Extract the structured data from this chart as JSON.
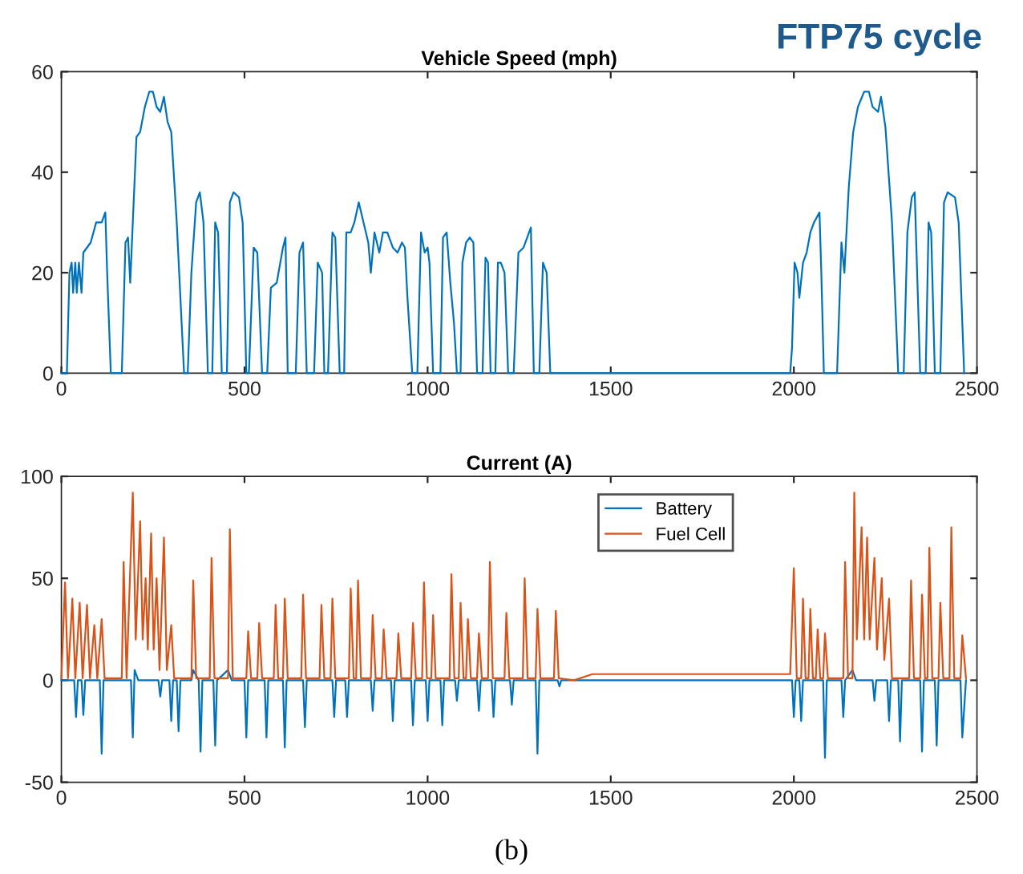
{
  "chart_data": [
    {
      "type": "line",
      "title": "Vehicle Speed (mph)",
      "annotations": [
        "FTP75 cycle"
      ],
      "xlim": [
        0,
        2500
      ],
      "xticks": [
        0,
        500,
        1000,
        1500,
        2000,
        2500
      ],
      "ylim": [
        0,
        60
      ],
      "yticks": [
        0,
        20,
        40,
        60
      ],
      "grid": false,
      "legend": false,
      "series": [
        {
          "color": "#0072bd",
          "x": [
            0,
            15,
            22,
            28,
            32,
            38,
            42,
            48,
            55,
            60,
            80,
            95,
            110,
            120,
            125,
            135,
            165,
            175,
            182,
            188,
            195,
            205,
            215,
            228,
            240,
            250,
            260,
            270,
            280,
            290,
            300,
            315,
            335,
            345,
            355,
            368,
            378,
            388,
            400,
            412,
            420,
            428,
            438,
            452,
            460,
            470,
            485,
            495,
            505,
            512,
            525,
            535,
            548,
            562,
            572,
            588,
            605,
            612,
            618,
            640,
            650,
            660,
            670,
            690,
            700,
            712,
            718,
            728,
            740,
            748,
            760,
            772,
            778,
            790,
            800,
            812,
            825,
            838,
            845,
            855,
            868,
            878,
            890,
            905,
            918,
            930,
            938,
            945,
            958,
            972,
            982,
            992,
            1000,
            1005,
            1015,
            1035,
            1042,
            1052,
            1062,
            1072,
            1080,
            1090,
            1095,
            1105,
            1115,
            1125,
            1135,
            1150,
            1158,
            1165,
            1172,
            1185,
            1192,
            1200,
            1210,
            1220,
            1235,
            1248,
            1262,
            1272,
            1282,
            1290,
            1305,
            1315,
            1325,
            1335,
            1370,
            1990,
            1995,
            2002,
            2010,
            2015,
            2025,
            2035,
            2045,
            2055,
            2070,
            2075,
            2082,
            2118,
            2130,
            2138,
            2150,
            2162,
            2175,
            2192,
            2205,
            2215,
            2230,
            2238,
            2250,
            2268,
            2285,
            2300,
            2310,
            2322,
            2330,
            2345,
            2360,
            2368,
            2375,
            2385,
            2400,
            2410,
            2420,
            2440,
            2450,
            2465
          ],
          "values": [
            0,
            0,
            20,
            22,
            16,
            22,
            16,
            22,
            16,
            24,
            26,
            30,
            30,
            32,
            20,
            0,
            0,
            26,
            27,
            18,
            30,
            47,
            48,
            53,
            56,
            56,
            53,
            52,
            55,
            50,
            48,
            30,
            0,
            0,
            20,
            34,
            36,
            30,
            0,
            0,
            30,
            28,
            0,
            0,
            34,
            36,
            35,
            30,
            0,
            0,
            25,
            24,
            0,
            0,
            17,
            18,
            25,
            27,
            0,
            0,
            24,
            26,
            0,
            0,
            22,
            20,
            0,
            0,
            28,
            27,
            0,
            0,
            28,
            28,
            30,
            34,
            30,
            26,
            20,
            28,
            24,
            28,
            28,
            25,
            24,
            26,
            25,
            15,
            0,
            0,
            28,
            24,
            25,
            22,
            0,
            0,
            27,
            28,
            18,
            10,
            0,
            0,
            22,
            26,
            27,
            26,
            0,
            0,
            23,
            22,
            0,
            0,
            22,
            22,
            20,
            0,
            0,
            24,
            25,
            27,
            29,
            0,
            0,
            22,
            20,
            0,
            0,
            0,
            5,
            22,
            20,
            15,
            22,
            24,
            28,
            30,
            32,
            20,
            0,
            0,
            26,
            20,
            37,
            48,
            53,
            56,
            56,
            53,
            52,
            55,
            49,
            30,
            0,
            0,
            28,
            35,
            36,
            0,
            0,
            30,
            28,
            0,
            0,
            34,
            36,
            35,
            30,
            0
          ]
        }
      ]
    },
    {
      "type": "line",
      "title": "Current (A)",
      "annotations": [
        "(b)"
      ],
      "xlim": [
        0,
        2500
      ],
      "xticks": [
        0,
        500,
        1000,
        1500,
        2000,
        2500
      ],
      "ylim": [
        -50,
        100
      ],
      "yticks": [
        -50,
        0,
        50,
        100
      ],
      "grid": false,
      "legend": "top",
      "series": [
        {
          "name": "Battery",
          "color": "#0072bd",
          "x": [
            0,
            35,
            40,
            45,
            55,
            60,
            65,
            105,
            110,
            115,
            190,
            195,
            200,
            210,
            265,
            270,
            275,
            295,
            300,
            305,
            315,
            320,
            325,
            355,
            360,
            375,
            380,
            385,
            415,
            420,
            425,
            455,
            465,
            500,
            505,
            510,
            555,
            560,
            565,
            605,
            610,
            615,
            660,
            665,
            670,
            740,
            745,
            750,
            775,
            780,
            785,
            845,
            850,
            855,
            900,
            905,
            910,
            955,
            960,
            965,
            995,
            1000,
            1005,
            1035,
            1040,
            1045,
            1075,
            1080,
            1085,
            1135,
            1140,
            1145,
            1175,
            1180,
            1185,
            1225,
            1230,
            1235,
            1295,
            1300,
            1305,
            1355,
            1360,
            1365,
            1995,
            2000,
            2005,
            2015,
            2020,
            2025,
            2080,
            2085,
            2090,
            2130,
            2135,
            2140,
            2160,
            2170,
            2215,
            2220,
            2225,
            2255,
            2260,
            2265,
            2285,
            2290,
            2295,
            2345,
            2350,
            2355,
            2385,
            2390,
            2395,
            2455,
            2460,
            2470
          ],
          "values": [
            0,
            0,
            -18,
            0,
            0,
            -17,
            0,
            0,
            -36,
            0,
            0,
            -28,
            5,
            0,
            0,
            -8,
            0,
            0,
            -20,
            0,
            0,
            -25,
            0,
            0,
            5,
            0,
            -35,
            0,
            0,
            -32,
            0,
            5,
            0,
            0,
            -28,
            0,
            0,
            -28,
            0,
            0,
            -33,
            0,
            0,
            -23,
            0,
            0,
            -18,
            0,
            0,
            -18,
            0,
            0,
            -15,
            0,
            0,
            -20,
            0,
            0,
            -22,
            0,
            0,
            -20,
            0,
            0,
            -22,
            0,
            0,
            -10,
            0,
            0,
            -15,
            0,
            0,
            -18,
            0,
            0,
            -12,
            0,
            0,
            -36,
            0,
            0,
            -3,
            0,
            0,
            -18,
            0,
            0,
            -20,
            0,
            0,
            -38,
            0,
            0,
            -18,
            0,
            5,
            0,
            0,
            -10,
            0,
            0,
            -20,
            0,
            0,
            -30,
            0,
            0,
            -35,
            0,
            0,
            -32,
            0,
            0,
            -28,
            0
          ]
        },
        {
          "name": "Fuel Cell",
          "color": "#d95319",
          "x": [
            0,
            10,
            18,
            30,
            38,
            50,
            58,
            70,
            78,
            90,
            98,
            110,
            118,
            165,
            170,
            178,
            195,
            203,
            215,
            222,
            230,
            236,
            245,
            252,
            260,
            268,
            280,
            288,
            300,
            308,
            355,
            360,
            368,
            405,
            410,
            418,
            455,
            460,
            468,
            505,
            510,
            518,
            535,
            540,
            548,
            580,
            585,
            592,
            605,
            610,
            618,
            655,
            660,
            668,
            705,
            710,
            718,
            735,
            740,
            748,
            785,
            790,
            798,
            805,
            810,
            818,
            845,
            850,
            858,
            875,
            880,
            888,
            915,
            920,
            928,
            955,
            960,
            968,
            985,
            990,
            998,
            1010,
            1015,
            1022,
            1060,
            1065,
            1073,
            1085,
            1090,
            1098,
            1105,
            1110,
            1118,
            1135,
            1140,
            1148,
            1165,
            1170,
            1178,
            1210,
            1215,
            1223,
            1260,
            1265,
            1273,
            1295,
            1300,
            1308,
            1345,
            1350,
            1358,
            1400,
            1450,
            1990,
            2000,
            2008,
            2020,
            2025,
            2032,
            2040,
            2045,
            2052,
            2060,
            2065,
            2072,
            2080,
            2085,
            2093,
            2135,
            2140,
            2148,
            2160,
            2165,
            2172,
            2185,
            2192,
            2200,
            2207,
            2220,
            2227,
            2240,
            2247,
            2260,
            2268,
            2315,
            2320,
            2328,
            2345,
            2350,
            2358,
            2365,
            2370,
            2378,
            2395,
            2400,
            2408,
            2425,
            2430,
            2438,
            2455,
            2460,
            2470
          ],
          "values": [
            1,
            48,
            1,
            40,
            1,
            38,
            1,
            37,
            1,
            27,
            1,
            30,
            1,
            1,
            58,
            1,
            92,
            20,
            78,
            20,
            50,
            15,
            72,
            15,
            50,
            5,
            70,
            5,
            27,
            1,
            1,
            49,
            1,
            1,
            60,
            1,
            1,
            74,
            1,
            1,
            24,
            1,
            1,
            28,
            1,
            1,
            37,
            1,
            1,
            40,
            1,
            1,
            42,
            1,
            1,
            37,
            1,
            1,
            40,
            1,
            1,
            45,
            1,
            1,
            49,
            1,
            1,
            32,
            1,
            1,
            25,
            1,
            1,
            23,
            1,
            1,
            28,
            1,
            1,
            48,
            1,
            1,
            32,
            1,
            1,
            52,
            1,
            1,
            38,
            1,
            1,
            30,
            1,
            1,
            23,
            1,
            1,
            58,
            1,
            1,
            33,
            1,
            1,
            50,
            1,
            1,
            35,
            1,
            1,
            34,
            1,
            0,
            3,
            3,
            55,
            1,
            1,
            40,
            1,
            1,
            35,
            1,
            1,
            25,
            1,
            1,
            23,
            1,
            1,
            58,
            1,
            1,
            92,
            20,
            75,
            20,
            70,
            20,
            60,
            15,
            50,
            10,
            40,
            1,
            1,
            49,
            1,
            1,
            42,
            1,
            1,
            65,
            1,
            1,
            38,
            1,
            1,
            75,
            1,
            1,
            22,
            1
          ]
        }
      ]
    }
  ]
}
